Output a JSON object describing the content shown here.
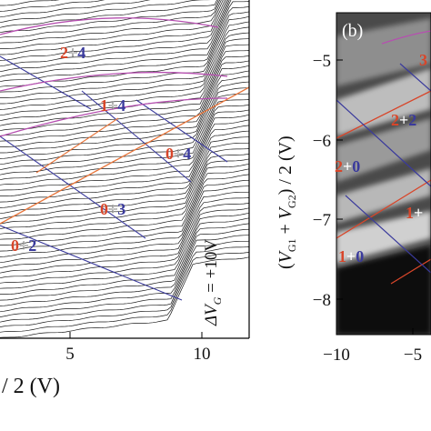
{
  "panel_a": {
    "x_ticks": [
      "5",
      "10"
    ],
    "x_axis_label_fragment": "/ 2 (V)",
    "delta_label": "ΔV",
    "delta_sub": "G",
    "delta_value": " = +10V",
    "peak_labels": [
      {
        "left": "2",
        "plus": "+",
        "right": "4"
      },
      {
        "left": "1",
        "plus": "+",
        "right": "4"
      },
      {
        "left": "0",
        "plus": "+",
        "right": "4"
      },
      {
        "left": "0",
        "plus": "+",
        "right": "3"
      },
      {
        "left": "0",
        "plus": "+",
        "right": "2"
      }
    ]
  },
  "panel_b": {
    "tag": "(b)",
    "y_ticks": [
      "−5",
      "−6",
      "−7",
      "−8"
    ],
    "x_ticks": [
      "−10",
      "−5"
    ],
    "y_label": {
      "open": "(",
      "v1": "V",
      "s1": "G1",
      "plus": " + ",
      "v2": "V",
      "s2": "G2",
      "close": ") / 2 (V)"
    },
    "state_labels": [
      {
        "left": "3",
        "plus": "",
        "right": ""
      },
      {
        "left": "2",
        "plus": "+",
        "right": "2"
      },
      {
        "left": "2",
        "plus": "+",
        "right": "0"
      },
      {
        "left": "1",
        "plus": "+",
        "right": ""
      },
      {
        "left": "1",
        "plus": "+",
        "right": "0"
      }
    ]
  },
  "colors": {
    "red": "#d8462a",
    "blue": "#3a3a9c",
    "magenta": "#b64fb0",
    "orange": "#e8753a"
  }
}
